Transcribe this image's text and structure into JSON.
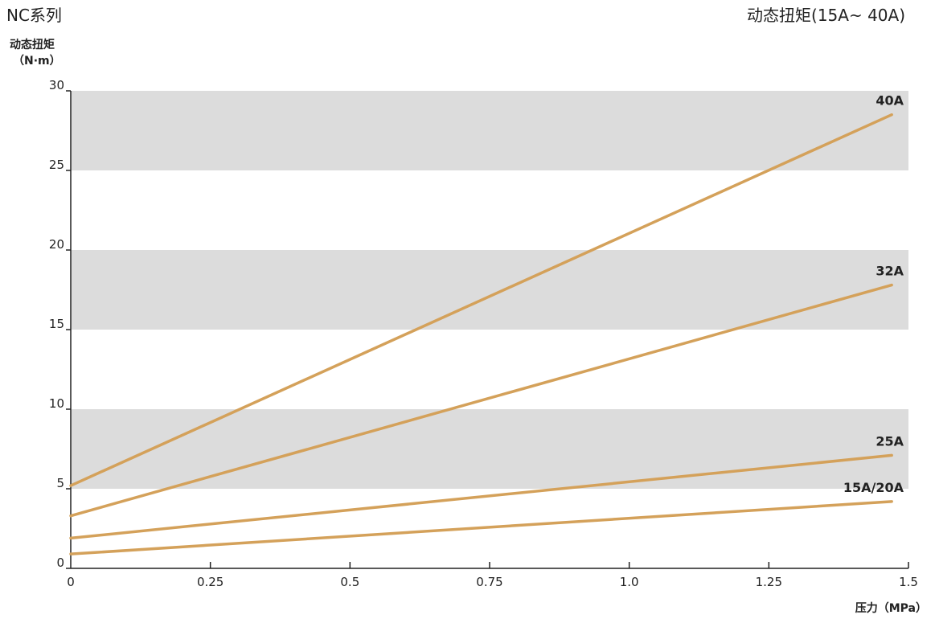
{
  "header": {
    "left_title": "NC系列",
    "right_title": "动态扭矩(15A~ 40A)"
  },
  "chart_data": {
    "type": "line",
    "ylabel_line1": "动态扭矩",
    "ylabel_line2": "（N·m）",
    "xlabel": "压力（MPa）",
    "xlim": [
      0,
      1.5
    ],
    "ylim": [
      0,
      30
    ],
    "x_ticks": [
      0,
      0.25,
      0.5,
      0.75,
      1.0,
      1.25,
      1.5
    ],
    "x_tick_labels": [
      "0",
      "0.25",
      "0.5",
      "0.75",
      "1.0",
      "1.25",
      "1.5"
    ],
    "y_ticks": [
      0,
      5,
      10,
      15,
      20,
      25,
      30
    ],
    "y_tick_labels": [
      "0",
      "5",
      "10",
      "15",
      "20",
      "25",
      "30"
    ],
    "bands": [
      [
        5,
        10
      ],
      [
        15,
        20
      ],
      [
        25,
        30
      ]
    ],
    "band_color": "#dcdcdc",
    "line_color": "#d4a15a",
    "series": [
      {
        "name": "40A",
        "x": [
          0,
          1.47
        ],
        "y": [
          5.2,
          28.5
        ]
      },
      {
        "name": "32A",
        "x": [
          0,
          1.47
        ],
        "y": [
          3.3,
          17.8
        ]
      },
      {
        "name": "25A",
        "x": [
          0,
          1.47
        ],
        "y": [
          1.9,
          7.1
        ]
      },
      {
        "name": "15A/20A",
        "x": [
          0,
          1.47
        ],
        "y": [
          0.9,
          4.2
        ]
      }
    ]
  }
}
